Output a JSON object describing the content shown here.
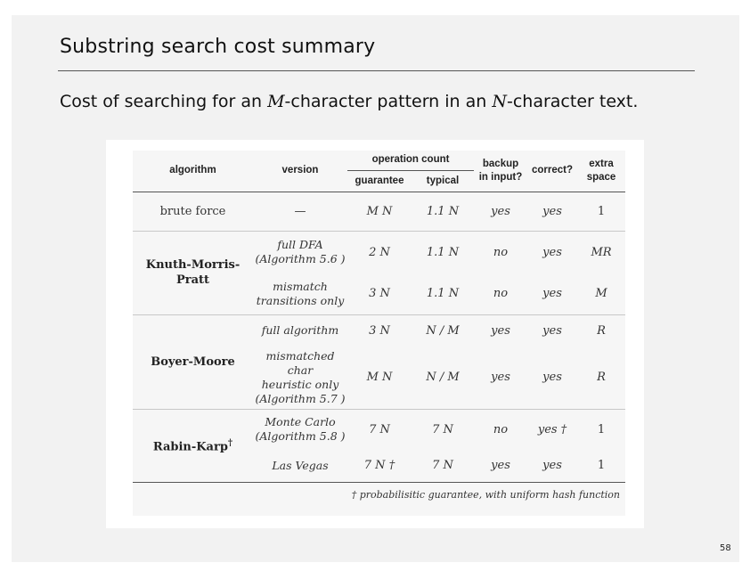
{
  "slide": {
    "title": "Substring search cost summary",
    "subtitle_parts": [
      "Cost of searching for an ",
      "M",
      "-character pattern in an ",
      "N",
      "-character text."
    ],
    "page_number": "58"
  },
  "table": {
    "headers": {
      "algorithm": "algorithm",
      "version": "version",
      "operation_count": "operation count",
      "guarantee": "guarantee",
      "typical": "typical",
      "backup_line1": "backup",
      "backup_line2": "in input?",
      "correct": "correct?",
      "extra_line1": "extra",
      "extra_line2": "space"
    },
    "groups": {
      "brute": "brute force",
      "kmp": "Knuth-Morris-Pratt",
      "bm": "Boyer-Moore",
      "rk": "Rabin-Karp",
      "rk_dagger": "†"
    },
    "rows": [
      {
        "version_lines": [
          "—"
        ],
        "guarantee": "M N",
        "typical": "1.1 N",
        "backup": "yes",
        "correct": "yes",
        "space": "1"
      },
      {
        "version_lines": [
          "full DFA",
          "(Algorithm 5.6 )"
        ],
        "guarantee": "2 N",
        "typical": "1.1 N",
        "backup": "no",
        "correct": "yes",
        "space": "MR"
      },
      {
        "version_lines": [
          "mismatch",
          "transitions only"
        ],
        "guarantee": "3 N",
        "typical": "1.1 N",
        "backup": "no",
        "correct": "yes",
        "space": "M"
      },
      {
        "version_lines": [
          "full algorithm"
        ],
        "guarantee": "3 N",
        "typical": "N / M",
        "backup": "yes",
        "correct": "yes",
        "space": "R"
      },
      {
        "version_lines": [
          "mismatched char",
          "heuristic only",
          "(Algorithm 5.7 )"
        ],
        "guarantee": "M N",
        "typical": "N / M",
        "backup": "yes",
        "correct": "yes",
        "space": "R"
      },
      {
        "version_lines": [
          "Monte Carlo",
          "(Algorithm 5.8 )"
        ],
        "guarantee": "7 N",
        "typical": "7 N",
        "backup": "no",
        "correct": "yes †",
        "space": "1"
      },
      {
        "version_lines": [
          "Las Vegas"
        ],
        "guarantee": "7 N †",
        "typical": "7 N",
        "backup": "yes",
        "correct": "yes",
        "space": "1"
      }
    ],
    "footnote": "† probabilisitic guarantee, with uniform hash function"
  }
}
